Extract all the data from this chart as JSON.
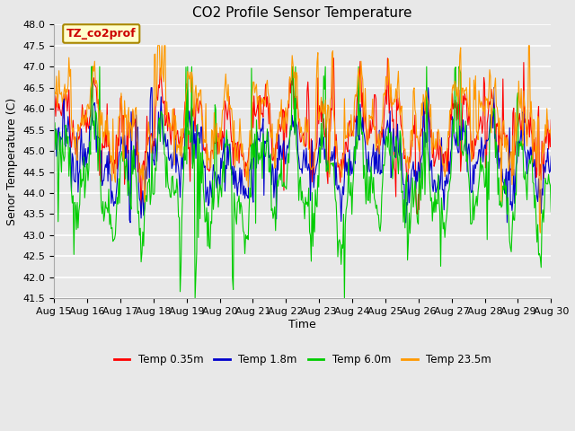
{
  "title": "CO2 Profile Sensor Temperature",
  "xlabel": "Time",
  "ylabel": "Senor Temperature (C)",
  "ylim": [
    41.5,
    48.0
  ],
  "yticks": [
    41.5,
    42.0,
    42.5,
    43.0,
    43.5,
    44.0,
    44.5,
    45.0,
    45.5,
    46.0,
    46.5,
    47.0,
    47.5,
    48.0
  ],
  "x_labels": [
    "Aug 15",
    "Aug 16",
    "Aug 17",
    "Aug 18",
    "Aug 19",
    "Aug 20",
    "Aug 21",
    "Aug 22",
    "Aug 23",
    "Aug 24",
    "Aug 25",
    "Aug 26",
    "Aug 27",
    "Aug 28",
    "Aug 29",
    "Aug 30"
  ],
  "series_colors": [
    "#ff0000",
    "#0000cc",
    "#00cc00",
    "#ff9900"
  ],
  "series_labels": [
    "Temp 0.35m",
    "Temp 1.8m",
    "Temp 6.0m",
    "Temp 23.5m"
  ],
  "annotation_text": "TZ_co2prof",
  "annotation_box_facecolor": "#ffffcc",
  "annotation_box_edgecolor": "#aa8800",
  "annotation_text_color": "#cc0000",
  "background_color": "#e8e8e8",
  "plot_bg_color": "#e8e8e8",
  "grid_color": "#ffffff",
  "title_fontsize": 11,
  "axis_label_fontsize": 9,
  "tick_fontsize": 8,
  "n_points": 600,
  "seed": 42
}
